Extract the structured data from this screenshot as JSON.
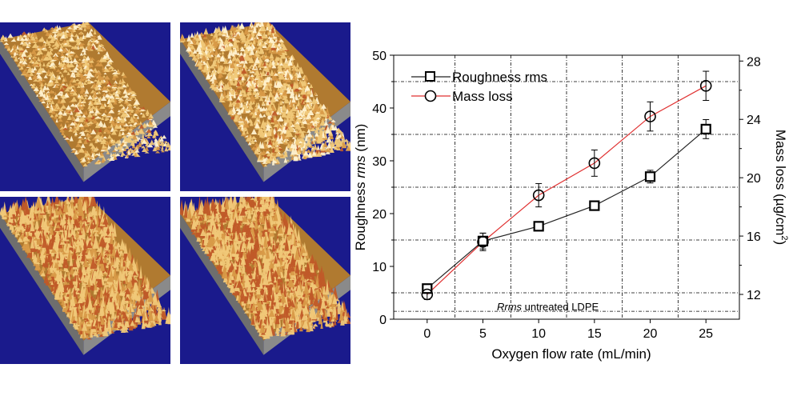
{
  "figure": {
    "panels": [
      {
        "id": "afm-top-left",
        "description_name": "afm-surface-low-roughness"
      },
      {
        "id": "afm-top-right",
        "description_name": "afm-surface-medium-roughness"
      },
      {
        "id": "afm-bottom-left",
        "description_name": "afm-surface-high-roughness"
      },
      {
        "id": "afm-bottom-right",
        "description_name": "afm-surface-highest-roughness"
      }
    ],
    "colors": {
      "panel_bg": "#1a1a8c",
      "surface_light": "#f0c878",
      "surface_dark": "#b07a30",
      "surface_red": "#c05a28",
      "base_gray": "#8a8a8a",
      "mass_loss_line": "#e03030",
      "roughness_line": "#222222"
    }
  },
  "chart_data": {
    "type": "line",
    "xlabel": "Oxygen flow rate (mL/min)",
    "ylabel_prefix": "Roughness ",
    "ylabel_italic": "rms",
    "ylabel_suffix": " (nm)",
    "y2label_main": "Mass loss (µg/cm",
    "y2label_sup": "2",
    "y2label_end": ")",
    "x": [
      0,
      5,
      10,
      15,
      20,
      25
    ],
    "x_ticks": [
      "0",
      "5",
      "10",
      "15",
      "20",
      "25"
    ],
    "xlim": [
      -3,
      28
    ],
    "ylim": [
      0,
      50
    ],
    "y_ticks": [
      "0",
      "10",
      "20",
      "30",
      "40",
      "50"
    ],
    "y2lim": [
      10.3,
      28.4
    ],
    "y2_ticks": [
      "12",
      "16",
      "20",
      "24",
      "28"
    ],
    "series": [
      {
        "name": "Roughness rms",
        "axis": "left",
        "marker": "square",
        "values": [
          5.8,
          14.8,
          17.6,
          21.5,
          27.0,
          36.0
        ],
        "errors": [
          0.8,
          1.5,
          0.8,
          0.7,
          1.2,
          1.8
        ]
      },
      {
        "name": "Mass loss",
        "axis": "right",
        "marker": "circle",
        "values": [
          12.0,
          15.6,
          18.8,
          21.0,
          24.2,
          26.3
        ],
        "errors": [
          0.35,
          0.6,
          0.8,
          0.9,
          1.0,
          1.0
        ]
      }
    ],
    "grid_x": [
      2.5,
      7.5,
      12.5,
      17.5,
      22.5
    ],
    "grid_y": [
      45,
      35,
      25,
      15,
      5,
      1.5
    ],
    "annotation_italic": "Rrms",
    "annotation_text": " untreated LDPE",
    "legend_position": "top-left"
  }
}
